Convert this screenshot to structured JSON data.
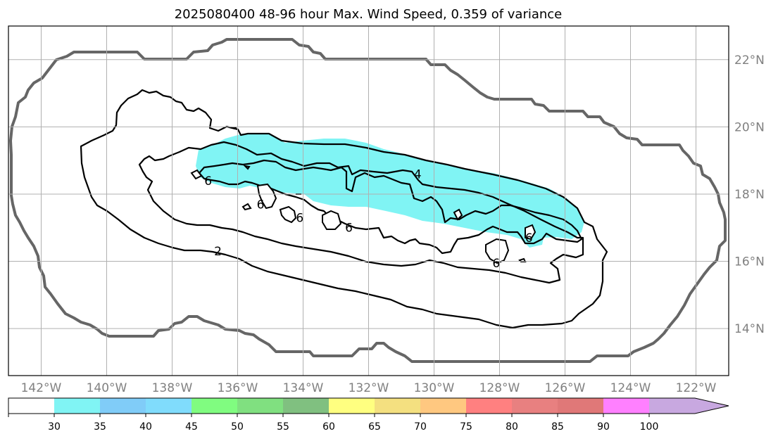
{
  "map": {
    "title": "2025080400 48-96 hour Max. Wind Speed, 0.359 of variance",
    "lon_range": [
      -143.0,
      -121.0
    ],
    "lat_range": [
      12.6,
      23.0
    ],
    "lon_ticks": [
      -142,
      -140,
      -138,
      -136,
      -134,
      -132,
      -130,
      -128,
      -126,
      -124,
      -122
    ],
    "lon_labels": [
      "142°W",
      "140°W",
      "138°W",
      "136°W",
      "134°W",
      "132°W",
      "130°W",
      "128°W",
      "126°W",
      "124°W",
      "122°W"
    ],
    "lat_ticks": [
      14,
      16,
      18,
      20,
      22
    ],
    "lat_labels": [
      "14°N",
      "16°N",
      "18°N",
      "20°N",
      "22°N"
    ],
    "grid": true,
    "cyan_fill_color": "#80f4f4",
    "outer_boundary_color": "#666666",
    "contour_labels": [
      {
        "text": "2",
        "lon": -136.6,
        "lat": 16.3
      },
      {
        "text": "4",
        "lon": -130.5,
        "lat": 18.6
      },
      {
        "text": "6",
        "lon": -136.9,
        "lat": 18.4
      },
      {
        "text": "6",
        "lon": -135.3,
        "lat": 17.7
      },
      {
        "text": "6",
        "lon": -134.1,
        "lat": 17.3
      },
      {
        "text": "6",
        "lon": -132.6,
        "lat": 17.0
      },
      {
        "text": "6",
        "lon": -128.1,
        "lat": 15.95
      },
      {
        "text": "6",
        "lon": -127.1,
        "lat": 16.7
      }
    ]
  },
  "colorbar": {
    "bins": [
      "#ffffff",
      "#80f4f4",
      "#80ccf8",
      "#80dcfc",
      "#80fc80",
      "#80e080",
      "#80c080",
      "#ffff80",
      "#f4e080",
      "#ffc880",
      "#ff8080",
      "#e88080",
      "#e07878",
      "#ff80ff",
      "#c8a8e0"
    ],
    "tick_values": [
      "30",
      "35",
      "40",
      "45",
      "50",
      "55",
      "60",
      "65",
      "70",
      "75",
      "80",
      "85",
      "90",
      "100"
    ]
  }
}
